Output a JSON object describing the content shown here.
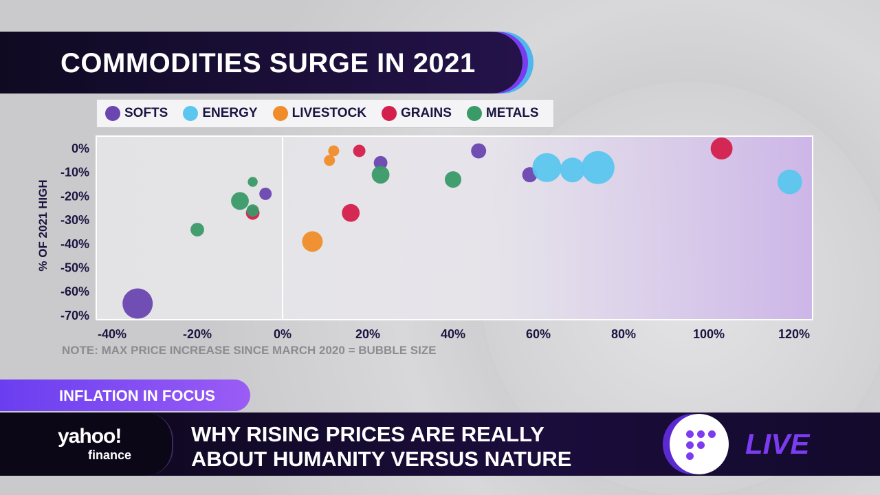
{
  "header": {
    "title": "COMMODITIES SURGE IN 2021"
  },
  "chart_data": {
    "type": "scatter",
    "title": "COMMODITIES SURGE IN 2021",
    "xlabel": "",
    "ylabel": "% OF 2021 HIGH",
    "note": "NOTE: MAX PRICE INCREASE SINCE MARCH 2020 = BUBBLE SIZE",
    "xlim": [
      -40,
      125
    ],
    "ylim": [
      -70,
      0
    ],
    "x_ticks": [
      "-40%",
      "-20%",
      "0%",
      "20%",
      "40%",
      "60%",
      "80%",
      "100%",
      "120%"
    ],
    "y_ticks": [
      "0%",
      "-10%",
      "-20%",
      "-30%",
      "-40%",
      "-50%",
      "-60%",
      "-70%"
    ],
    "grid": false,
    "legend_position": "top",
    "series": [
      {
        "name": "SOFTS",
        "color": "#6a46b0",
        "points": [
          {
            "x": -34,
            "y": -65,
            "size": 84
          },
          {
            "x": -4,
            "y": -19,
            "size": 14
          },
          {
            "x": 23,
            "y": -6,
            "size": 17
          },
          {
            "x": 46,
            "y": -1,
            "size": 21
          },
          {
            "x": 58,
            "y": -11,
            "size": 21
          }
        ]
      },
      {
        "name": "ENERGY",
        "color": "#5bc6ee",
        "points": [
          {
            "x": 62,
            "y": -8,
            "size": 77
          },
          {
            "x": 68,
            "y": -9,
            "size": 56
          },
          {
            "x": 74,
            "y": -8,
            "size": 100
          },
          {
            "x": 119,
            "y": -14,
            "size": 56
          }
        ]
      },
      {
        "name": "LIVESTOCK",
        "color": "#f08c2a",
        "points": [
          {
            "x": 12,
            "y": -1,
            "size": 11
          },
          {
            "x": 11,
            "y": -5,
            "size": 11
          },
          {
            "x": 7,
            "y": -39,
            "size": 39
          }
        ]
      },
      {
        "name": "GRAINS",
        "color": "#d41f4c",
        "points": [
          {
            "x": 18,
            "y": -1,
            "size": 14
          },
          {
            "x": 16,
            "y": -27,
            "size": 29
          },
          {
            "x": -7,
            "y": -27,
            "size": 17
          },
          {
            "x": 103,
            "y": 0,
            "size": 44
          }
        ]
      },
      {
        "name": "METALS",
        "color": "#3a9a68",
        "points": [
          {
            "x": -7,
            "y": -14,
            "size": 9
          },
          {
            "x": -10,
            "y": -22,
            "size": 29
          },
          {
            "x": -7,
            "y": -26,
            "size": 14
          },
          {
            "x": -20,
            "y": -34,
            "size": 17
          },
          {
            "x": 23,
            "y": -11,
            "size": 29
          },
          {
            "x": 40,
            "y": -13,
            "size": 25
          }
        ]
      }
    ]
  },
  "ticker": {
    "tag": "INFLATION IN FOCUS",
    "headline_line1": "WHY RISING PRICES ARE REALLY",
    "headline_line2": "ABOUT HUMANITY VERSUS NATURE",
    "brand_top": "yahoo!",
    "brand_bottom": "finance",
    "live": "LIVE"
  }
}
